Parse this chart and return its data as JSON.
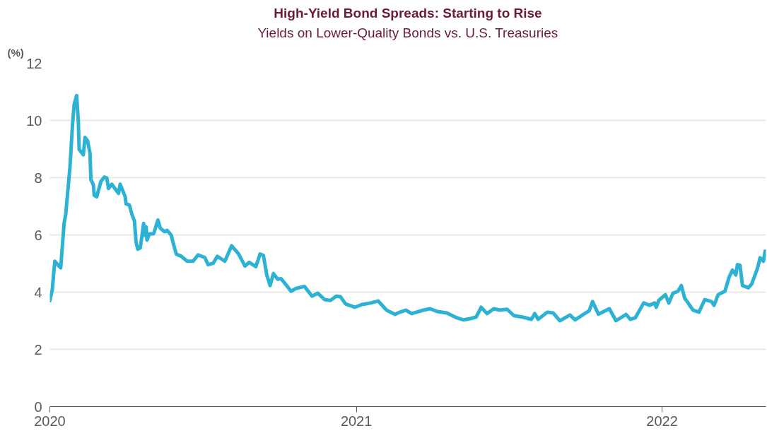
{
  "chart_data": {
    "type": "line",
    "title": "High-Yield Bond Spreads: Starting to Rise",
    "subtitle": "Yields on Lower-Quality Bonds vs. U.S. Treasuries",
    "ylabel": "(%)",
    "xlim": [
      "2020-01-01",
      "2022-05-05"
    ],
    "ylim": [
      0,
      12
    ],
    "xticks": [
      {
        "value": "2020-01-01",
        "label": "2020"
      },
      {
        "value": "2021-01-01",
        "label": "2021"
      },
      {
        "value": "2022-01-01",
        "label": "2022"
      }
    ],
    "yticks": [
      0,
      2,
      4,
      6,
      8,
      10,
      12
    ],
    "grid": "y",
    "marker": "none",
    "line_style": "solid",
    "x": [
      "2020-01-01",
      "2020-01-04",
      "2020-01-06",
      "2020-01-07",
      "2020-01-11",
      "2020-01-14",
      "2020-01-18",
      "2020-01-20",
      "2020-01-22",
      "2020-01-25",
      "2020-01-28",
      "2020-01-30",
      "2020-02-02",
      "2020-02-04",
      "2020-02-05",
      "2020-02-10",
      "2020-02-12",
      "2020-02-15",
      "2020-02-18",
      "2020-02-19",
      "2020-02-22",
      "2020-02-23",
      "2020-02-26",
      "2020-03-02",
      "2020-03-06",
      "2020-03-09",
      "2020-03-11",
      "2020-03-15",
      "2020-03-23",
      "2020-03-25",
      "2020-03-31",
      "2020-04-01",
      "2020-04-05",
      "2020-04-08",
      "2020-04-11",
      "2020-04-13",
      "2020-04-15",
      "2020-04-18",
      "2020-04-22",
      "2020-04-23",
      "2020-04-25",
      "2020-04-26",
      "2020-04-29",
      "2020-05-04",
      "2020-05-09",
      "2020-05-12",
      "2020-05-17",
      "2020-05-20",
      "2020-05-25",
      "2020-05-27",
      "2020-05-31",
      "2020-06-06",
      "2020-06-13",
      "2020-06-20",
      "2020-06-26",
      "2020-07-04",
      "2020-07-08",
      "2020-07-14",
      "2020-07-19",
      "2020-07-28",
      "2020-08-05",
      "2020-08-13",
      "2020-08-21",
      "2020-08-26",
      "2020-09-03",
      "2020-09-08",
      "2020-09-12",
      "2020-09-16",
      "2020-09-20",
      "2020-09-24",
      "2020-09-29",
      "2020-10-03",
      "2020-10-07",
      "2020-10-15",
      "2020-10-21",
      "2020-10-31",
      "2020-11-09",
      "2020-11-16",
      "2020-11-24",
      "2020-12-01",
      "2020-12-08",
      "2020-12-13",
      "2020-12-19",
      "2020-12-30",
      "2021-01-08",
      "2021-01-18",
      "2021-01-27",
      "2021-02-06",
      "2021-02-16",
      "2021-02-22",
      "2021-03-01",
      "2021-03-08",
      "2021-03-22",
      "2021-03-30",
      "2021-04-08",
      "2021-04-19",
      "2021-05-01",
      "2021-05-09",
      "2021-05-18",
      "2021-05-24",
      "2021-05-30",
      "2021-06-06",
      "2021-06-14",
      "2021-06-21",
      "2021-06-30",
      "2021-07-08",
      "2021-07-18",
      "2021-07-29",
      "2021-08-02",
      "2021-08-06",
      "2021-08-17",
      "2021-08-24",
      "2021-09-01",
      "2021-09-13",
      "2021-09-19",
      "2021-09-29",
      "2021-10-06",
      "2021-10-10",
      "2021-10-17",
      "2021-10-30",
      "2021-11-07",
      "2021-11-19",
      "2021-11-24",
      "2021-11-30",
      "2021-12-10",
      "2021-12-17",
      "2021-12-23",
      "2021-12-25",
      "2021-12-28",
      "2022-01-05",
      "2022-01-09",
      "2022-01-14",
      "2022-01-20",
      "2022-01-24",
      "2022-01-28",
      "2022-02-07",
      "2022-02-14",
      "2022-02-21",
      "2022-03-01",
      "2022-03-04",
      "2022-03-09",
      "2022-03-17",
      "2022-03-22",
      "2022-03-26",
      "2022-03-30",
      "2022-04-01",
      "2022-04-04",
      "2022-04-07",
      "2022-04-14",
      "2022-04-18",
      "2022-04-25",
      "2022-04-28",
      "2022-05-02",
      "2022-05-04"
    ],
    "series": [
      {
        "color": "#2eb2d4",
        "values": [
          3.7,
          4.1,
          4.8,
          5.08,
          4.94,
          4.85,
          6.4,
          6.72,
          7.38,
          8.36,
          9.82,
          10.56,
          10.87,
          9.97,
          8.99,
          8.8,
          9.41,
          9.29,
          8.85,
          7.94,
          7.75,
          7.38,
          7.33,
          7.87,
          8.02,
          7.99,
          7.62,
          7.77,
          7.45,
          7.77,
          7.33,
          7.09,
          7.04,
          6.72,
          6.48,
          5.74,
          5.5,
          5.55,
          6.4,
          5.99,
          6.28,
          5.82,
          6.04,
          6.04,
          6.52,
          6.23,
          6.11,
          6.16,
          5.99,
          5.74,
          5.33,
          5.25,
          5.08,
          5.08,
          5.3,
          5.21,
          4.96,
          5.01,
          5.25,
          5.08,
          5.62,
          5.35,
          4.91,
          5.04,
          4.89,
          5.33,
          5.28,
          4.6,
          4.23,
          4.65,
          4.45,
          4.47,
          4.33,
          4.03,
          4.13,
          4.2,
          3.86,
          3.96,
          3.74,
          3.71,
          3.86,
          3.84,
          3.59,
          3.47,
          3.57,
          3.62,
          3.69,
          3.37,
          3.22,
          3.3,
          3.37,
          3.25,
          3.37,
          3.42,
          3.32,
          3.27,
          3.1,
          3.03,
          3.08,
          3.13,
          3.47,
          3.25,
          3.42,
          3.37,
          3.4,
          3.18,
          3.13,
          3.05,
          3.25,
          3.05,
          3.3,
          3.27,
          3.0,
          3.2,
          3.03,
          3.22,
          3.35,
          3.67,
          3.23,
          3.42,
          3.0,
          3.22,
          3.05,
          3.1,
          3.62,
          3.54,
          3.62,
          3.47,
          3.71,
          3.91,
          3.62,
          3.96,
          4.03,
          4.23,
          3.79,
          3.37,
          3.3,
          3.74,
          3.67,
          3.54,
          3.91,
          4.03,
          4.52,
          4.77,
          4.6,
          4.96,
          4.94,
          4.23,
          4.15,
          4.28,
          4.84,
          5.2,
          5.08,
          5.43
        ]
      }
    ]
  }
}
